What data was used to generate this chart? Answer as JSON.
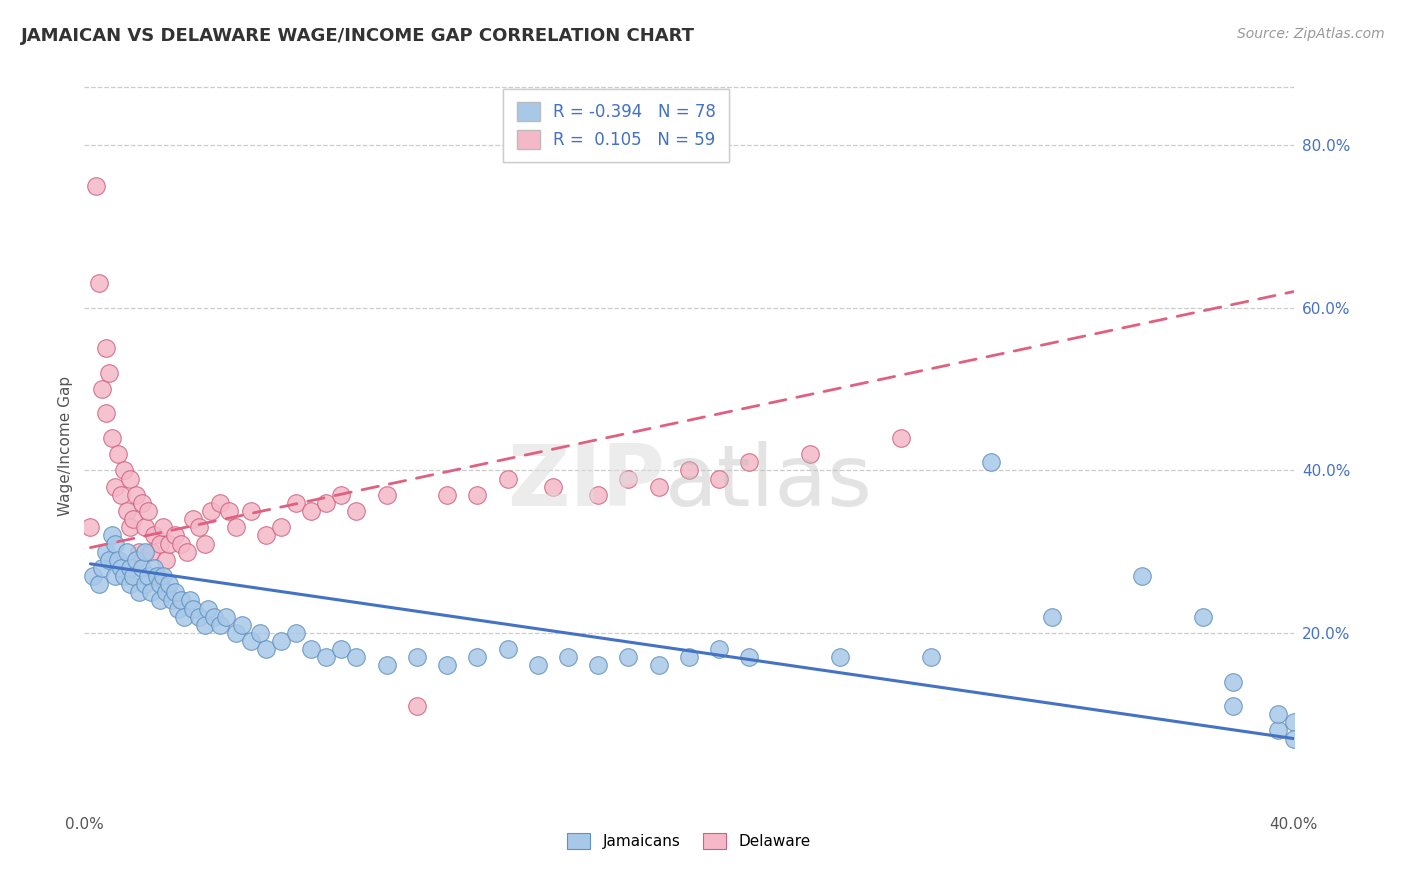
{
  "title": "JAMAICAN VS DELAWARE WAGE/INCOME GAP CORRELATION CHART",
  "source": "Source: ZipAtlas.com",
  "ylabel": "Wage/Income Gap",
  "xlim": [
    0.0,
    0.4
  ],
  "ylim": [
    -0.02,
    0.88
  ],
  "xticks": [
    0.0,
    0.4
  ],
  "xtick_labels": [
    "0.0%",
    "40.0%"
  ],
  "ytick_labels_right": [
    "20.0%",
    "40.0%",
    "60.0%",
    "80.0%"
  ],
  "yticks_right": [
    0.2,
    0.4,
    0.6,
    0.8
  ],
  "legend1_label": "Jamaicans",
  "legend2_label": "Delaware",
  "r1": -0.394,
  "n1": 78,
  "r2": 0.105,
  "n2": 59,
  "blue_color": "#A8C8E8",
  "pink_color": "#F4B8C8",
  "blue_edge_color": "#6090C0",
  "pink_edge_color": "#D06080",
  "blue_line_color": "#4472C4",
  "pink_line_color": "#E06080",
  "background_color": "#FFFFFF",
  "grid_color": "#CCCCCC",
  "blue_scatter_x": [
    0.003,
    0.005,
    0.006,
    0.007,
    0.008,
    0.009,
    0.01,
    0.01,
    0.011,
    0.012,
    0.013,
    0.014,
    0.015,
    0.015,
    0.016,
    0.017,
    0.018,
    0.019,
    0.02,
    0.02,
    0.021,
    0.022,
    0.023,
    0.024,
    0.025,
    0.025,
    0.026,
    0.027,
    0.028,
    0.029,
    0.03,
    0.031,
    0.032,
    0.033,
    0.035,
    0.036,
    0.038,
    0.04,
    0.041,
    0.043,
    0.045,
    0.047,
    0.05,
    0.052,
    0.055,
    0.058,
    0.06,
    0.065,
    0.07,
    0.075,
    0.08,
    0.085,
    0.09,
    0.1,
    0.11,
    0.12,
    0.13,
    0.14,
    0.15,
    0.16,
    0.17,
    0.18,
    0.19,
    0.2,
    0.21,
    0.22,
    0.25,
    0.28,
    0.3,
    0.32,
    0.35,
    0.37,
    0.38,
    0.38,
    0.395,
    0.395,
    0.4,
    0.4
  ],
  "blue_scatter_y": [
    0.27,
    0.26,
    0.28,
    0.3,
    0.29,
    0.32,
    0.27,
    0.31,
    0.29,
    0.28,
    0.27,
    0.3,
    0.26,
    0.28,
    0.27,
    0.29,
    0.25,
    0.28,
    0.26,
    0.3,
    0.27,
    0.25,
    0.28,
    0.27,
    0.26,
    0.24,
    0.27,
    0.25,
    0.26,
    0.24,
    0.25,
    0.23,
    0.24,
    0.22,
    0.24,
    0.23,
    0.22,
    0.21,
    0.23,
    0.22,
    0.21,
    0.22,
    0.2,
    0.21,
    0.19,
    0.2,
    0.18,
    0.19,
    0.2,
    0.18,
    0.17,
    0.18,
    0.17,
    0.16,
    0.17,
    0.16,
    0.17,
    0.18,
    0.16,
    0.17,
    0.16,
    0.17,
    0.16,
    0.17,
    0.18,
    0.17,
    0.17,
    0.17,
    0.41,
    0.22,
    0.27,
    0.22,
    0.11,
    0.14,
    0.08,
    0.1,
    0.09,
    0.07
  ],
  "pink_scatter_x": [
    0.002,
    0.004,
    0.005,
    0.006,
    0.007,
    0.007,
    0.008,
    0.009,
    0.01,
    0.011,
    0.012,
    0.013,
    0.014,
    0.015,
    0.015,
    0.016,
    0.017,
    0.018,
    0.019,
    0.02,
    0.021,
    0.022,
    0.023,
    0.025,
    0.026,
    0.027,
    0.028,
    0.03,
    0.032,
    0.034,
    0.036,
    0.038,
    0.04,
    0.042,
    0.045,
    0.048,
    0.05,
    0.055,
    0.06,
    0.065,
    0.07,
    0.075,
    0.08,
    0.085,
    0.09,
    0.1,
    0.11,
    0.12,
    0.13,
    0.14,
    0.155,
    0.17,
    0.18,
    0.19,
    0.2,
    0.21,
    0.22,
    0.24,
    0.27
  ],
  "pink_scatter_y": [
    0.33,
    0.75,
    0.63,
    0.5,
    0.55,
    0.47,
    0.52,
    0.44,
    0.38,
    0.42,
    0.37,
    0.4,
    0.35,
    0.33,
    0.39,
    0.34,
    0.37,
    0.3,
    0.36,
    0.33,
    0.35,
    0.3,
    0.32,
    0.31,
    0.33,
    0.29,
    0.31,
    0.32,
    0.31,
    0.3,
    0.34,
    0.33,
    0.31,
    0.35,
    0.36,
    0.35,
    0.33,
    0.35,
    0.32,
    0.33,
    0.36,
    0.35,
    0.36,
    0.37,
    0.35,
    0.37,
    0.11,
    0.37,
    0.37,
    0.39,
    0.38,
    0.37,
    0.39,
    0.38,
    0.4,
    0.39,
    0.41,
    0.42,
    0.44
  ],
  "blue_line_x": [
    0.002,
    0.4
  ],
  "blue_line_y": [
    0.285,
    0.07
  ],
  "pink_line_x": [
    0.002,
    0.4
  ],
  "pink_line_y": [
    0.305,
    0.62
  ]
}
